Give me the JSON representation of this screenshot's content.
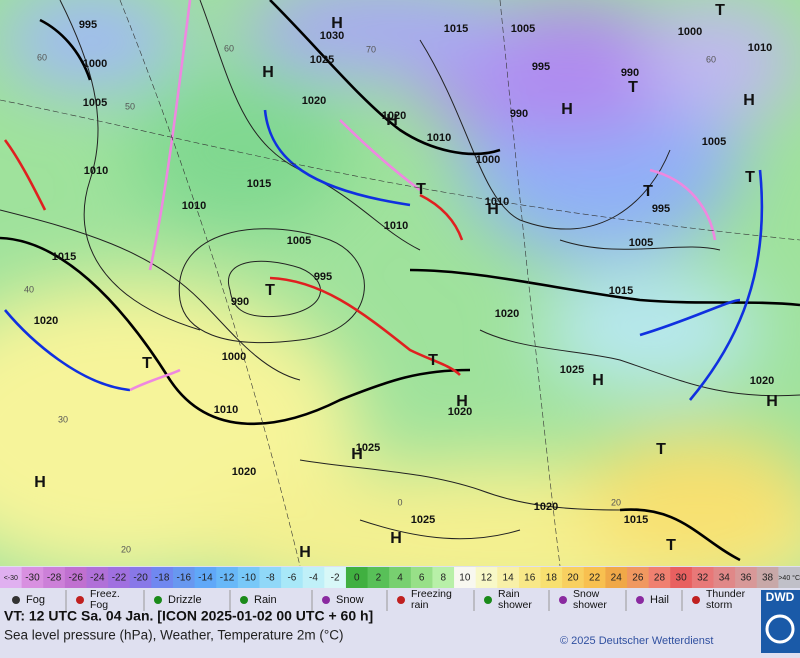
{
  "map": {
    "labels": [
      "995",
      "1030",
      "H",
      "1015",
      "1005",
      "1000",
      "1010",
      "1000",
      "1025",
      "H",
      "995",
      "990",
      "T",
      "1005",
      "1020",
      "1020",
      "H",
      "990",
      "H",
      "T",
      "H",
      "1010",
      "1005",
      "1000",
      "1010",
      "1015",
      "T",
      "T",
      "1010",
      "1010",
      "H",
      "995",
      "1010",
      "T",
      "1005",
      "1005",
      "1015",
      "995",
      "T",
      "990",
      "1015",
      "1020",
      "1020",
      "T",
      "1000",
      "T",
      "1025",
      "H",
      "1020",
      "1010",
      "H",
      "1020",
      "H",
      "1025",
      "H",
      "T",
      "1020",
      "H",
      "1020",
      "1025",
      "H",
      "1015",
      "T",
      "H"
    ],
    "isotherm_labels": [
      "60",
      "50",
      "60",
      "70",
      "60",
      "40",
      "30",
      "20",
      "0",
      "20"
    ]
  },
  "scale": {
    "labels": [
      "<-30",
      "-30",
      "-28",
      "-26",
      "-24",
      "-22",
      "-20",
      "-18",
      "-16",
      "-14",
      "-12",
      "-10",
      "-8",
      "-6",
      "-4",
      "-2",
      "0",
      "2",
      "4",
      "6",
      "8",
      "10",
      "12",
      "14",
      "16",
      "18",
      "20",
      "22",
      "24",
      "26",
      "28",
      "30",
      "32",
      "34",
      "36",
      "38",
      ">40 °C"
    ],
    "colors": [
      "#e0b0f0",
      "#d890e0",
      "#cc80d8",
      "#c070d0",
      "#b070d8",
      "#a070e0",
      "#8878e8",
      "#7088f0",
      "#6898f0",
      "#60a8f8",
      "#68b8f8",
      "#78c8f8",
      "#90d8f8",
      "#a8e8f8",
      "#c0f0f8",
      "#d8f8f8",
      "#40b040",
      "#58c058",
      "#78d070",
      "#98e088",
      "#b8f0a8",
      "#f8f8f0",
      "#f8f8c8",
      "#f8f0a8",
      "#f8e888",
      "#f8e070",
      "#f8d060",
      "#f8c050",
      "#f0a848",
      "#f09860",
      "#f08070",
      "#e86060",
      "#e87878",
      "#e08888",
      "#d89898",
      "#c8a8a8",
      "#c0c0c8"
    ]
  },
  "legend": {
    "items": [
      {
        "lines": [
          "Fog"
        ]
      },
      {
        "lines": [
          "Freez.",
          "Fog"
        ]
      },
      {
        "lines": [
          "Drizzle"
        ]
      },
      {
        "lines": [
          "Rain"
        ]
      },
      {
        "lines": [
          "Snow"
        ]
      },
      {
        "lines": [
          "Freezing",
          "rain"
        ]
      },
      {
        "lines": [
          "Rain",
          "shower"
        ]
      },
      {
        "lines": [
          "Snow",
          "shower"
        ]
      },
      {
        "lines": [
          "Hail"
        ]
      },
      {
        "lines": [
          "Thunder",
          "storm"
        ]
      }
    ]
  },
  "footer": {
    "valid_time": "VT: 12 UTC Sa.  04 Jan. [ICON 2025-01-02  00 UTC + 60 h]",
    "description": "Sea level pressure (hPa), Weather, Temperature 2m (°C)",
    "copyright": "© 2025 Deutscher Wetterdienst",
    "logo": "DWD"
  }
}
